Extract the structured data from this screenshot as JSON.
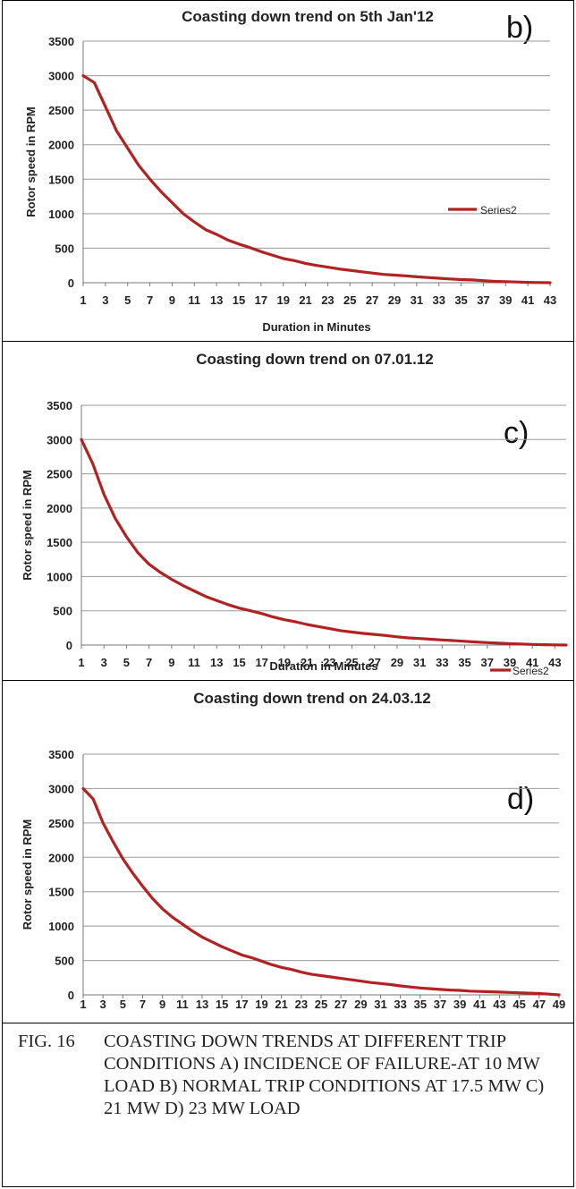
{
  "chart_data": [
    {
      "type": "line",
      "panel_label": "b)",
      "title": "Coasting down trend on 5th Jan'12",
      "xlabel": "Duration in Minutes",
      "ylabel": "Rotor speed in RPM",
      "ylim": [
        0,
        3500
      ],
      "yticks": [
        0,
        500,
        1000,
        1500,
        2000,
        2500,
        3000,
        3500
      ],
      "x_tick_labels": [
        "1",
        "3",
        "5",
        "7",
        "9",
        "11",
        "13",
        "15",
        "17",
        "19",
        "21",
        "23",
        "25",
        "27",
        "29",
        "31",
        "33",
        "35",
        "37",
        "39",
        "41",
        "43"
      ],
      "grid": "horizontal",
      "legend_position": "right",
      "series": [
        {
          "name": "Series2",
          "color": "#b22222",
          "x": [
            1,
            2,
            3,
            4,
            5,
            6,
            7,
            8,
            9,
            10,
            11,
            12,
            13,
            14,
            15,
            16,
            17,
            18,
            19,
            20,
            21,
            22,
            23,
            24,
            25,
            26,
            27,
            28,
            29,
            30,
            31,
            32,
            33,
            34,
            35,
            36,
            37,
            38,
            39,
            40,
            41,
            42,
            43
          ],
          "values": [
            3000,
            2900,
            2550,
            2200,
            1950,
            1700,
            1500,
            1320,
            1160,
            1000,
            880,
            770,
            700,
            620,
            560,
            510,
            450,
            400,
            350,
            320,
            280,
            250,
            225,
            200,
            180,
            160,
            140,
            120,
            110,
            100,
            85,
            75,
            65,
            55,
            45,
            40,
            30,
            20,
            15,
            10,
            5,
            3,
            0
          ]
        }
      ]
    },
    {
      "type": "line",
      "panel_label": "c)",
      "title": "Coasting down trend on 07.01.12",
      "xlabel": "Duration in Minutes",
      "ylabel": "Rotor speed in RPM",
      "ylim": [
        0,
        3500
      ],
      "yticks": [
        0,
        500,
        1000,
        1500,
        2000,
        2500,
        3000,
        3500
      ],
      "x_tick_labels": [
        "1",
        "3",
        "5",
        "7",
        "9",
        "11",
        "13",
        "15",
        "17",
        "19",
        "21",
        "23",
        "25",
        "27",
        "29",
        "31",
        "33",
        "35",
        "37",
        "39",
        "41",
        "43"
      ],
      "grid": "horizontal",
      "legend_position": "bottom-right",
      "series": [
        {
          "name": "Series2",
          "color": "#b22222",
          "x": [
            1,
            2,
            3,
            4,
            5,
            6,
            7,
            8,
            9,
            10,
            11,
            12,
            13,
            14,
            15,
            16,
            17,
            18,
            19,
            20,
            21,
            22,
            23,
            24,
            25,
            26,
            27,
            28,
            29,
            30,
            31,
            32,
            33,
            34,
            35,
            36,
            37,
            38,
            39,
            40,
            41,
            42,
            43,
            44
          ],
          "values": [
            3000,
            2650,
            2200,
            1850,
            1580,
            1350,
            1180,
            1060,
            960,
            870,
            790,
            710,
            650,
            590,
            540,
            500,
            460,
            410,
            370,
            340,
            300,
            270,
            240,
            210,
            190,
            170,
            155,
            140,
            120,
            105,
            95,
            85,
            75,
            65,
            55,
            45,
            35,
            28,
            20,
            14,
            9,
            5,
            2,
            0
          ]
        }
      ]
    },
    {
      "type": "line",
      "panel_label": "d)",
      "title": "Coasting down trend on 24.03.12",
      "xlabel": "Duration in Minutes",
      "ylabel": "Rotor speed in RPM",
      "ylim": [
        0,
        3500
      ],
      "yticks": [
        0,
        500,
        1000,
        1500,
        2000,
        2500,
        3000,
        3500
      ],
      "x_tick_labels": [
        "1",
        "3",
        "5",
        "7",
        "9",
        "11",
        "13",
        "15",
        "17",
        "19",
        "21",
        "23",
        "25",
        "27",
        "29",
        "31",
        "33",
        "35",
        "37",
        "39",
        "41",
        "43",
        "45",
        "47",
        "49"
      ],
      "grid": "horizontal",
      "legend_position": "none",
      "series": [
        {
          "name": "",
          "color": "#b22222",
          "x": [
            1,
            2,
            3,
            4,
            5,
            6,
            7,
            8,
            9,
            10,
            11,
            12,
            13,
            14,
            15,
            16,
            17,
            18,
            19,
            20,
            21,
            22,
            23,
            24,
            25,
            26,
            27,
            28,
            29,
            30,
            31,
            32,
            33,
            34,
            35,
            36,
            37,
            38,
            39,
            40,
            41,
            42,
            43,
            44,
            45,
            46,
            47,
            48,
            49
          ],
          "values": [
            3000,
            2850,
            2500,
            2230,
            1980,
            1770,
            1580,
            1400,
            1250,
            1130,
            1030,
            930,
            840,
            770,
            700,
            640,
            580,
            540,
            490,
            440,
            400,
            370,
            330,
            300,
            280,
            260,
            240,
            220,
            200,
            180,
            165,
            150,
            130,
            115,
            100,
            90,
            80,
            70,
            65,
            55,
            50,
            45,
            40,
            35,
            30,
            25,
            20,
            10,
            0
          ]
        }
      ]
    }
  ],
  "caption": {
    "label": "FIG. 16",
    "text": "COASTING DOWN TRENDS AT DIFFERENT TRIP CONDITIONS  A) INCIDENCE OF FAILURE-AT 10 MW LOAD  B) NORMAL TRIP CONDITIONS AT 17.5 MW C) 21 MW  D) 23 MW LOAD"
  }
}
